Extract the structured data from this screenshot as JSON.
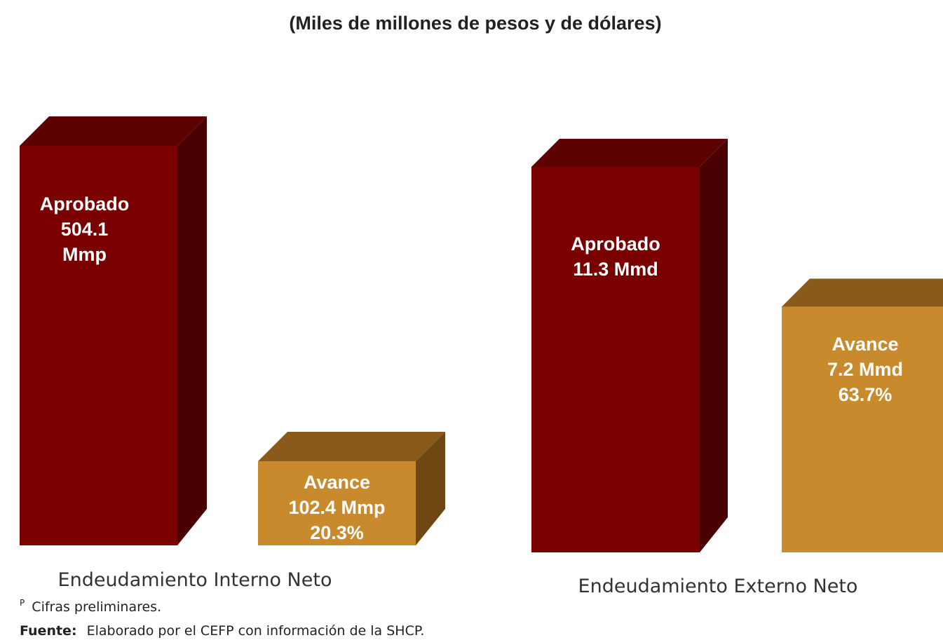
{
  "chart_data": {
    "type": "bar",
    "subtitle": "(Miles de millones de pesos y de dólares)",
    "groups": [
      {
        "category": "Endeudamiento Interno Neto",
        "bars": [
          {
            "name": "Aprobado",
            "value": 504.1,
            "unit": "Mmp",
            "lines": [
              "Aprobado",
              "504.1",
              "Mmp"
            ]
          },
          {
            "name": "Avance",
            "value": 102.4,
            "unit": "Mmp",
            "percent": 20.3,
            "lines": [
              "Avance",
              "102.4 Mmp",
              "20.3%"
            ]
          }
        ]
      },
      {
        "category": "Endeudamiento Externo Neto",
        "bars": [
          {
            "name": "Aprobado",
            "value": 11.3,
            "unit": "Mmd",
            "lines": [
              "Aprobado",
              "11.3 Mmd"
            ]
          },
          {
            "name": "Avance",
            "value": 7.2,
            "unit": "Mmd",
            "percent": 63.7,
            "lines": [
              "Avance",
              "7.2 Mmd",
              "63.7%"
            ]
          }
        ]
      }
    ],
    "colors": {
      "aprobado_front": "#7a0000",
      "aprobado_top": "#5c0000",
      "aprobado_side": "#4a0000",
      "avance_front": "#c98a2e",
      "avance_top": "#8a5a1a",
      "avance_side": "#6e4712"
    }
  },
  "footnotes": {
    "preliminary_marker": "P",
    "preliminary": "Cifras preliminares.",
    "source_label": "Fuente:",
    "source_text": "Elaborado por el CEFP con información de la SHCP."
  }
}
